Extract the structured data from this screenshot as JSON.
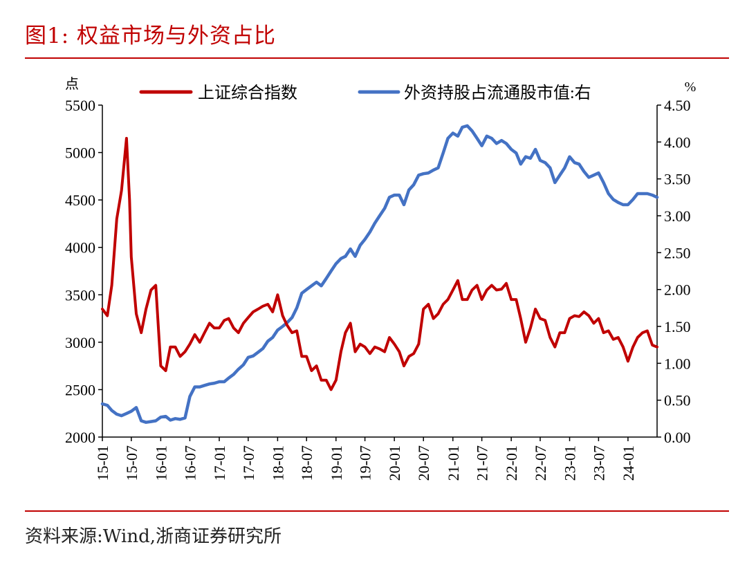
{
  "figure_title": "图1:   权益市场与外资占比",
  "source_note": "资料来源:Wind,浙商证券研究所",
  "chart_data": {
    "type": "line",
    "left_unit": "点",
    "right_unit": "%",
    "y_left": {
      "min": 2000,
      "max": 5500,
      "ticks": [
        "2000",
        "2500",
        "3000",
        "3500",
        "4000",
        "4500",
        "5000",
        "5500"
      ]
    },
    "y_right": {
      "min": 0,
      "max": 4.5,
      "ticks": [
        "0.00",
        "0.50",
        "1.00",
        "1.50",
        "2.00",
        "2.50",
        "3.00",
        "3.50",
        "4.00",
        "4.50"
      ]
    },
    "x_ticks": [
      "15-01",
      "15-07",
      "16-01",
      "16-07",
      "17-01",
      "17-07",
      "18-01",
      "18-07",
      "19-01",
      "19-07",
      "20-01",
      "20-07",
      "21-01",
      "21-07",
      "22-01",
      "22-07",
      "23-01",
      "23-07",
      "24-01"
    ],
    "grid": false,
    "legend_position": "top",
    "series": [
      {
        "name": "上证综合指数",
        "axis": "left",
        "color": "#c00000",
        "points": [
          [
            "2015-01",
            3350
          ],
          [
            "2015-02",
            3280
          ],
          [
            "2015-03",
            3600
          ],
          [
            "2015-04",
            4300
          ],
          [
            "2015-05",
            4600
          ],
          [
            "2015-06",
            5150
          ],
          [
            "2015-06-20",
            4500
          ],
          [
            "2015-07",
            3900
          ],
          [
            "2015-08",
            3300
          ],
          [
            "2015-09",
            3100
          ],
          [
            "2015-10",
            3350
          ],
          [
            "2015-11",
            3550
          ],
          [
            "2015-12",
            3600
          ],
          [
            "2016-01",
            2750
          ],
          [
            "2016-02",
            2700
          ],
          [
            "2016-03",
            2950
          ],
          [
            "2016-04",
            2950
          ],
          [
            "2016-05",
            2850
          ],
          [
            "2016-06",
            2900
          ],
          [
            "2016-07",
            2980
          ],
          [
            "2016-08",
            3080
          ],
          [
            "2016-09",
            3000
          ],
          [
            "2016-10",
            3100
          ],
          [
            "2016-11",
            3200
          ],
          [
            "2016-12",
            3150
          ],
          [
            "2017-01",
            3150
          ],
          [
            "2017-02",
            3230
          ],
          [
            "2017-03",
            3250
          ],
          [
            "2017-04",
            3150
          ],
          [
            "2017-05",
            3100
          ],
          [
            "2017-06",
            3200
          ],
          [
            "2017-07",
            3260
          ],
          [
            "2017-08",
            3320
          ],
          [
            "2017-09",
            3350
          ],
          [
            "2017-10",
            3380
          ],
          [
            "2017-11",
            3400
          ],
          [
            "2017-12",
            3320
          ],
          [
            "2018-01",
            3500
          ],
          [
            "2018-02",
            3280
          ],
          [
            "2018-03",
            3180
          ],
          [
            "2018-04",
            3100
          ],
          [
            "2018-05",
            3120
          ],
          [
            "2018-06",
            2850
          ],
          [
            "2018-07",
            2850
          ],
          [
            "2018-08",
            2700
          ],
          [
            "2018-09",
            2750
          ],
          [
            "2018-10",
            2600
          ],
          [
            "2018-11",
            2600
          ],
          [
            "2018-12",
            2500
          ],
          [
            "2019-01",
            2600
          ],
          [
            "2019-02",
            2900
          ],
          [
            "2019-03",
            3100
          ],
          [
            "2019-04",
            3200
          ],
          [
            "2019-05",
            2900
          ],
          [
            "2019-06",
            2980
          ],
          [
            "2019-07",
            2950
          ],
          [
            "2019-08",
            2880
          ],
          [
            "2019-09",
            2950
          ],
          [
            "2019-10",
            2930
          ],
          [
            "2019-11",
            2900
          ],
          [
            "2019-12",
            3050
          ],
          [
            "2020-01",
            2980
          ],
          [
            "2020-02",
            2900
          ],
          [
            "2020-03",
            2750
          ],
          [
            "2020-04",
            2850
          ],
          [
            "2020-05",
            2880
          ],
          [
            "2020-06",
            2980
          ],
          [
            "2020-07",
            3350
          ],
          [
            "2020-08",
            3400
          ],
          [
            "2020-09",
            3250
          ],
          [
            "2020-10",
            3300
          ],
          [
            "2020-11",
            3400
          ],
          [
            "2020-12",
            3450
          ],
          [
            "2021-01",
            3550
          ],
          [
            "2021-02",
            3650
          ],
          [
            "2021-03",
            3450
          ],
          [
            "2021-04",
            3450
          ],
          [
            "2021-05",
            3550
          ],
          [
            "2021-06",
            3600
          ],
          [
            "2021-07",
            3450
          ],
          [
            "2021-08",
            3550
          ],
          [
            "2021-09",
            3600
          ],
          [
            "2021-10",
            3550
          ],
          [
            "2021-11",
            3560
          ],
          [
            "2021-12",
            3620
          ],
          [
            "2022-01",
            3450
          ],
          [
            "2022-02",
            3450
          ],
          [
            "2022-03",
            3250
          ],
          [
            "2022-04",
            3000
          ],
          [
            "2022-05",
            3150
          ],
          [
            "2022-06",
            3350
          ],
          [
            "2022-07",
            3250
          ],
          [
            "2022-08",
            3230
          ],
          [
            "2022-09",
            3050
          ],
          [
            "2022-10",
            2950
          ],
          [
            "2022-11",
            3100
          ],
          [
            "2022-12",
            3100
          ],
          [
            "2023-01",
            3250
          ],
          [
            "2023-02",
            3280
          ],
          [
            "2023-03",
            3270
          ],
          [
            "2023-04",
            3320
          ],
          [
            "2023-05",
            3280
          ],
          [
            "2023-06",
            3200
          ],
          [
            "2023-07",
            3250
          ],
          [
            "2023-08",
            3100
          ],
          [
            "2023-09",
            3120
          ],
          [
            "2023-10",
            3030
          ],
          [
            "2023-11",
            3050
          ],
          [
            "2023-12",
            2950
          ],
          [
            "2024-01",
            2800
          ],
          [
            "2024-02",
            2950
          ],
          [
            "2024-03",
            3050
          ],
          [
            "2024-04",
            3100
          ],
          [
            "2024-05",
            3120
          ],
          [
            "2024-06",
            2970
          ],
          [
            "2024-07",
            2950
          ]
        ]
      },
      {
        "name": "外资持股占流通股市值:右",
        "axis": "right",
        "color": "#4472c4",
        "points": [
          [
            "2015-01",
            0.45
          ],
          [
            "2015-02",
            0.43
          ],
          [
            "2015-03",
            0.36
          ],
          [
            "2015-04",
            0.31
          ],
          [
            "2015-05",
            0.29
          ],
          [
            "2015-06",
            0.32
          ],
          [
            "2015-07",
            0.35
          ],
          [
            "2015-08",
            0.4
          ],
          [
            "2015-09",
            0.22
          ],
          [
            "2015-10",
            0.2
          ],
          [
            "2015-11",
            0.21
          ],
          [
            "2015-12",
            0.22
          ],
          [
            "2016-01",
            0.27
          ],
          [
            "2016-02",
            0.28
          ],
          [
            "2016-03",
            0.23
          ],
          [
            "2016-04",
            0.25
          ],
          [
            "2016-05",
            0.24
          ],
          [
            "2016-06",
            0.26
          ],
          [
            "2016-07",
            0.55
          ],
          [
            "2016-08",
            0.68
          ],
          [
            "2016-09",
            0.68
          ],
          [
            "2016-10",
            0.7
          ],
          [
            "2016-11",
            0.72
          ],
          [
            "2016-12",
            0.73
          ],
          [
            "2017-01",
            0.75
          ],
          [
            "2017-02",
            0.75
          ],
          [
            "2017-03",
            0.8
          ],
          [
            "2017-04",
            0.85
          ],
          [
            "2017-05",
            0.92
          ],
          [
            "2017-06",
            0.98
          ],
          [
            "2017-07",
            1.08
          ],
          [
            "2017-08",
            1.1
          ],
          [
            "2017-09",
            1.15
          ],
          [
            "2017-10",
            1.2
          ],
          [
            "2017-11",
            1.3
          ],
          [
            "2017-12",
            1.35
          ],
          [
            "2018-01",
            1.45
          ],
          [
            "2018-02",
            1.5
          ],
          [
            "2018-03",
            1.55
          ],
          [
            "2018-04",
            1.62
          ],
          [
            "2018-05",
            1.75
          ],
          [
            "2018-06",
            1.95
          ],
          [
            "2018-07",
            2.0
          ],
          [
            "2018-08",
            2.05
          ],
          [
            "2018-09",
            2.1
          ],
          [
            "2018-10",
            2.05
          ],
          [
            "2018-11",
            2.15
          ],
          [
            "2018-12",
            2.25
          ],
          [
            "2019-01",
            2.35
          ],
          [
            "2019-02",
            2.42
          ],
          [
            "2019-03",
            2.45
          ],
          [
            "2019-04",
            2.55
          ],
          [
            "2019-05",
            2.45
          ],
          [
            "2019-06",
            2.6
          ],
          [
            "2019-07",
            2.68
          ],
          [
            "2019-08",
            2.78
          ],
          [
            "2019-09",
            2.9
          ],
          [
            "2019-10",
            3.0
          ],
          [
            "2019-11",
            3.1
          ],
          [
            "2019-12",
            3.25
          ],
          [
            "2020-01",
            3.28
          ],
          [
            "2020-02",
            3.28
          ],
          [
            "2020-03",
            3.15
          ],
          [
            "2020-04",
            3.35
          ],
          [
            "2020-05",
            3.42
          ],
          [
            "2020-06",
            3.55
          ],
          [
            "2020-07",
            3.57
          ],
          [
            "2020-08",
            3.58
          ],
          [
            "2020-09",
            3.62
          ],
          [
            "2020-10",
            3.65
          ],
          [
            "2020-11",
            3.85
          ],
          [
            "2020-12",
            4.05
          ],
          [
            "2021-01",
            4.12
          ],
          [
            "2021-02",
            4.08
          ],
          [
            "2021-03",
            4.2
          ],
          [
            "2021-04",
            4.22
          ],
          [
            "2021-05",
            4.15
          ],
          [
            "2021-06",
            4.05
          ],
          [
            "2021-07",
            3.95
          ],
          [
            "2021-08",
            4.08
          ],
          [
            "2021-09",
            4.05
          ],
          [
            "2021-10",
            3.98
          ],
          [
            "2021-11",
            4.02
          ],
          [
            "2021-12",
            3.98
          ],
          [
            "2022-01",
            3.9
          ],
          [
            "2022-02",
            3.85
          ],
          [
            "2022-03",
            3.7
          ],
          [
            "2022-04",
            3.8
          ],
          [
            "2022-05",
            3.78
          ],
          [
            "2022-06",
            3.9
          ],
          [
            "2022-07",
            3.75
          ],
          [
            "2022-08",
            3.72
          ],
          [
            "2022-09",
            3.65
          ],
          [
            "2022-10",
            3.45
          ],
          [
            "2022-11",
            3.55
          ],
          [
            "2022-12",
            3.65
          ],
          [
            "2023-01",
            3.8
          ],
          [
            "2023-02",
            3.72
          ],
          [
            "2023-03",
            3.7
          ],
          [
            "2023-04",
            3.6
          ],
          [
            "2023-05",
            3.52
          ],
          [
            "2023-06",
            3.55
          ],
          [
            "2023-07",
            3.58
          ],
          [
            "2023-08",
            3.45
          ],
          [
            "2023-09",
            3.3
          ],
          [
            "2023-10",
            3.22
          ],
          [
            "2023-11",
            3.18
          ],
          [
            "2023-12",
            3.15
          ],
          [
            "2024-01",
            3.15
          ],
          [
            "2024-02",
            3.22
          ],
          [
            "2024-03",
            3.3
          ],
          [
            "2024-04",
            3.3
          ],
          [
            "2024-05",
            3.3
          ],
          [
            "2024-06",
            3.28
          ],
          [
            "2024-07",
            3.25
          ]
        ]
      }
    ]
  }
}
